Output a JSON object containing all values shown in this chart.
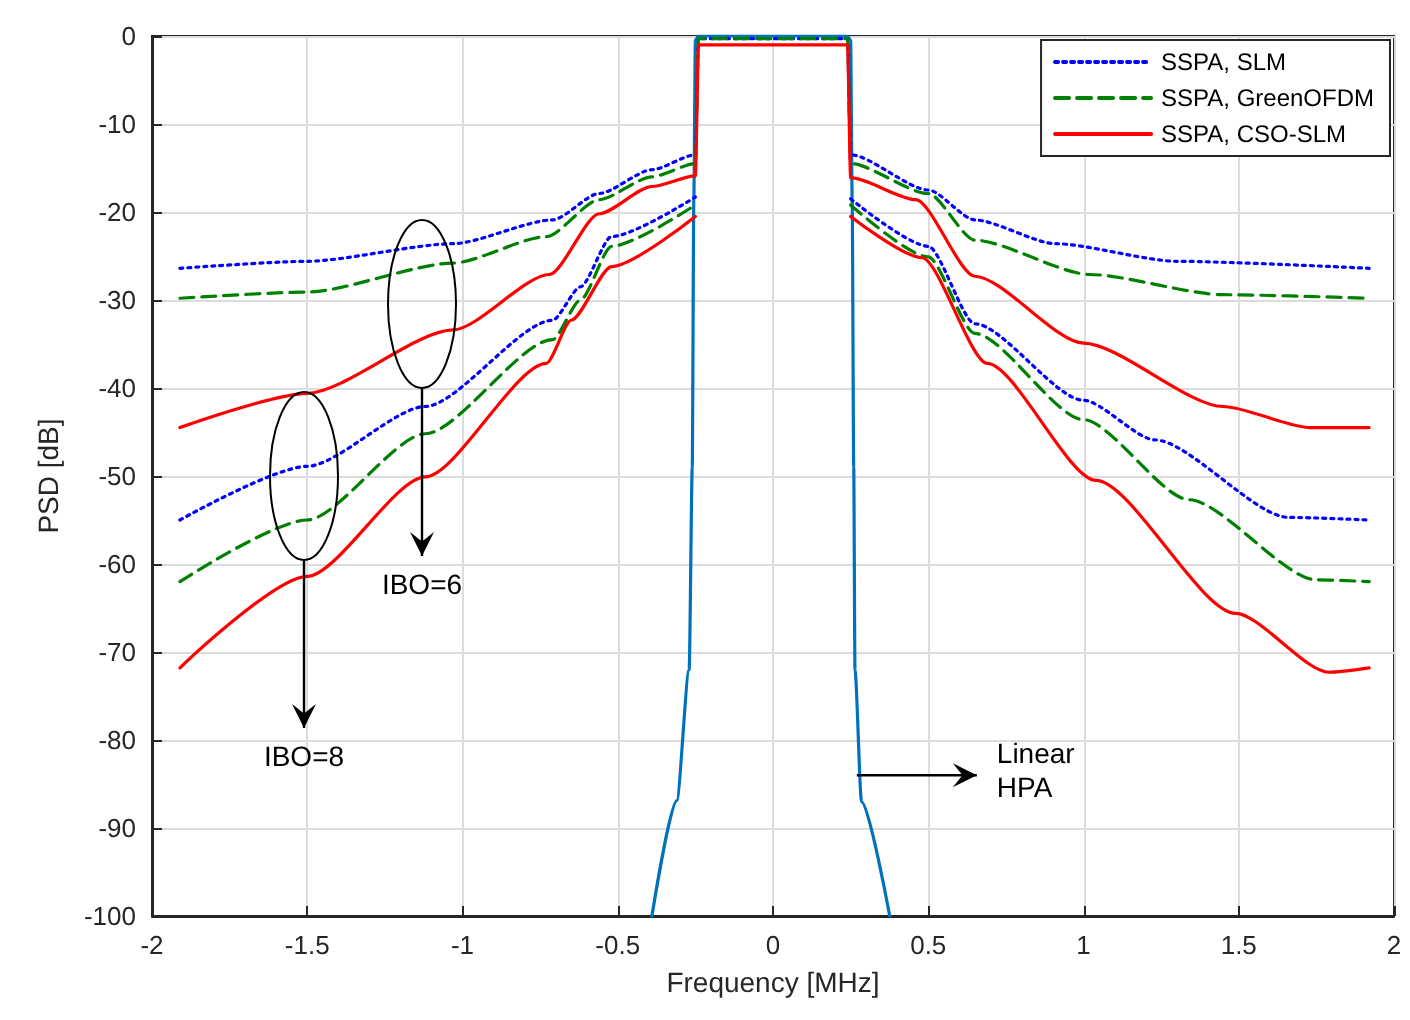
{
  "chart_data": {
    "type": "line",
    "xlabel": "Frequency [MHz]",
    "ylabel": "PSD [dB]",
    "xlim": [
      -2,
      2
    ],
    "xticks": [
      -2,
      -1.5,
      -1,
      -0.5,
      0,
      0.5,
      1,
      1.5,
      2
    ],
    "ylim": [
      -100,
      0
    ],
    "yticks": [
      -100,
      -90,
      -80,
      -70,
      -60,
      -50,
      -40,
      -30,
      -20,
      -10,
      0
    ],
    "grid": true,
    "legend": "top right",
    "marker": "none",
    "series": [
      {
        "color": "#0072bd",
        "line_style": "solid",
        "x": [
          -0.39,
          -0.31,
          -0.27,
          -0.26,
          -0.255,
          -0.25,
          -0.24,
          0.24,
          0.25,
          0.255,
          0.26,
          0.264,
          0.285,
          0.376
        ],
        "values": [
          -100,
          -86.9,
          -72,
          -49,
          -18.5,
          -0.5,
          0,
          0,
          -0.5,
          -18.5,
          -49,
          -72,
          -87,
          -100
        ]
      },
      {
        "name": "SSPA, SLM",
        "color": "#0000ff",
        "line_style": "dotted",
        "x": [
          -1.91,
          -1.5,
          -1.03,
          -0.71,
          -0.56,
          -0.39,
          -0.25,
          -0.24,
          0.24,
          0.25,
          0.5,
          0.65,
          0.91,
          1.3,
          1.92
        ],
        "values": [
          -26.4,
          -25.6,
          -23.6,
          -20.9,
          -17.9,
          -15.2,
          -13.5,
          -0.3,
          -0.3,
          -13.5,
          -17.5,
          -20.9,
          -23.6,
          -25.6,
          -26.4
        ]
      },
      {
        "name": "SSPA, GreenOFDM",
        "color": "#008000",
        "line_style": "dashed",
        "x": [
          -1.91,
          -1.5,
          -1.03,
          -0.73,
          -0.56,
          -0.39,
          -0.25,
          -0.24,
          0.24,
          0.25,
          0.5,
          0.65,
          1.02,
          1.45,
          1.92
        ],
        "values": [
          -29.8,
          -29.1,
          -25.8,
          -22.8,
          -18.6,
          -16.0,
          -14.5,
          -0.3,
          -0.3,
          -14.5,
          -17.9,
          -23.2,
          -27.1,
          -29.4,
          -29.8
        ]
      },
      {
        "name": "SSPA, CSO-SLM",
        "color": "#ff0000",
        "line_style": "solid",
        "x": [
          -1.91,
          -1.5,
          -1.03,
          -0.72,
          -0.56,
          -0.39,
          -0.25,
          -0.24,
          0.24,
          0.25,
          0.46,
          0.65,
          1.0,
          1.45,
          1.73,
          1.92
        ],
        "values": [
          -44.5,
          -40.6,
          -33.4,
          -27.1,
          -20.2,
          -17.1,
          -15.9,
          -1,
          -1,
          -16.1,
          -18.6,
          -27.3,
          -34.9,
          -42.1,
          -44.5,
          -44.5
        ]
      },
      {
        "color": "#0000ff",
        "line_style": "dotted",
        "x": [
          -1.91,
          -1.5,
          -1.12,
          -0.71,
          -0.62,
          -0.52,
          -0.25,
          0,
          0.25,
          0.5,
          0.65,
          1.0,
          1.23,
          1.66,
          1.92
        ],
        "values": [
          -55.0,
          -48.9,
          -42.1,
          -32.3,
          -28.5,
          -22.8,
          -18.3,
          null,
          -18.5,
          -23.9,
          -32.7,
          -41.4,
          -45.9,
          -54.7,
          -55.0
        ]
      },
      {
        "color": "#008000",
        "line_style": "dashed",
        "x": [
          -1.91,
          -1.5,
          -1.12,
          -0.71,
          -0.62,
          -0.52,
          -0.25,
          0,
          0.25,
          0.5,
          0.65,
          1.0,
          1.34,
          1.75,
          1.92
        ],
        "values": [
          -62.0,
          -55.0,
          -45.2,
          -34.5,
          -30.0,
          -23.9,
          -19.2,
          null,
          -19.2,
          -25.1,
          -33.8,
          -43.6,
          -52.7,
          -61.8,
          -62.0
        ]
      },
      {
        "color": "#ff0000",
        "line_style": "solid",
        "x": [
          -1.91,
          -1.5,
          -1.12,
          -0.73,
          -0.65,
          -0.52,
          -0.25,
          0,
          0.25,
          0.48,
          0.69,
          1.04,
          1.49,
          1.79,
          1.92
        ],
        "values": [
          -71.8,
          -61.4,
          -50.1,
          -37.2,
          -32.3,
          -26.2,
          -20.5,
          null,
          -20.5,
          -25.2,
          -37.2,
          -50.5,
          -65.6,
          -72.3,
          -71.8
        ]
      }
    ],
    "annotations": [
      "IBO=6",
      "IBO=8",
      {
        "text": "Linear\nHPA",
        "x": 0.27,
        "y": -84
      }
    ]
  }
}
